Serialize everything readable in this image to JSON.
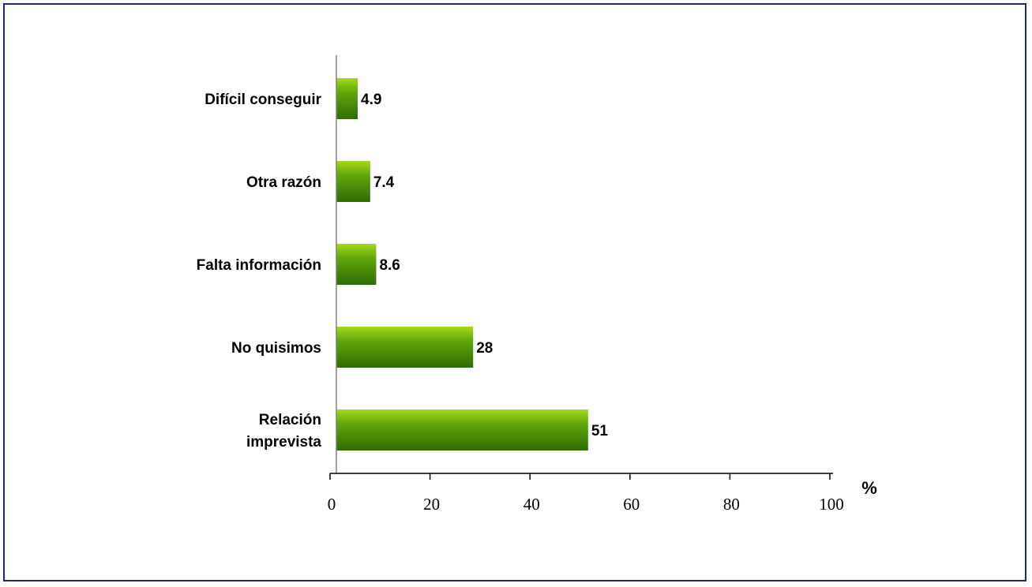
{
  "chart_data": {
    "type": "bar",
    "orientation": "horizontal",
    "categories": [
      "Difícil conseguir",
      "Otra razón",
      "Falta información",
      "No quisimos",
      "Relación imprevista"
    ],
    "category_lines": [
      [
        "Difícil conseguir"
      ],
      [
        "Otra razón"
      ],
      [
        "Falta información"
      ],
      [
        "No quisimos"
      ],
      [
        "Relación",
        "imprevista"
      ]
    ],
    "values": [
      4.9,
      7.4,
      8.6,
      28,
      51
    ],
    "value_labels": [
      "4.9",
      "7.4",
      "8.6",
      "28",
      "51"
    ],
    "xlim": [
      0,
      100
    ],
    "xticks": [
      0,
      20,
      40,
      60,
      80,
      100
    ],
    "xtick_labels": [
      "0",
      "20",
      "40",
      "60",
      "80",
      "100"
    ],
    "unit_label": "%",
    "title": "",
    "grid": false,
    "legend": "none",
    "colors": {
      "bar_light": "#a6d81e",
      "bar_mid": "#5fa80a",
      "bar_dark": "#2e6b06",
      "axis": "#808080",
      "frame": "#1a2a6c"
    }
  }
}
